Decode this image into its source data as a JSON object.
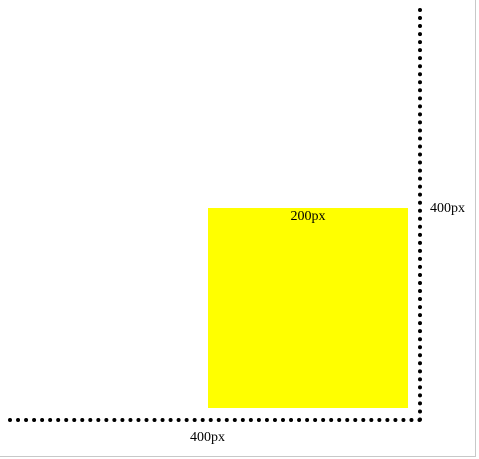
{
  "square": {
    "label": "200px"
  },
  "box": {
    "height_label": "400px",
    "width_label": "400px"
  }
}
